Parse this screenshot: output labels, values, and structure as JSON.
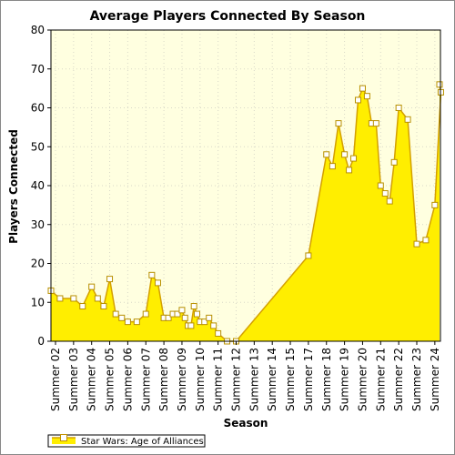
{
  "chart_data": {
    "type": "area",
    "title": "Average Players Connected By Season",
    "xlabel": "Season",
    "ylabel": "Players Connected",
    "ylim": [
      0,
      80
    ],
    "yticks": [
      0,
      10,
      20,
      30,
      40,
      50,
      60,
      70,
      80
    ],
    "xticks": [
      "Summer 02",
      "Summer 03",
      "Summer 04",
      "Summer 05",
      "Summer 06",
      "Summer 07",
      "Summer 08",
      "Summer 09",
      "Summer 10",
      "Summer 11",
      "Summer 12",
      "Summer 13",
      "Summer 14",
      "Summer 15",
      "Summer 17",
      "Summer 18",
      "Summer 19",
      "Summer 20",
      "Summer 21",
      "Summer 22",
      "Summer 23",
      "Summer 24"
    ],
    "grid": true,
    "legend_position": "bottom-left",
    "colors": {
      "fill": "#ffee00",
      "line": "#d4a000",
      "plot_bg": "#ffffe0",
      "marker_fill": "#ffffff"
    },
    "series": [
      {
        "name": "Star Wars: Age of Alliances",
        "points": [
          [
            "Summer 02",
            13
          ],
          [
            "Summer 02",
            11
          ],
          [
            "Summer 03",
            11
          ],
          [
            "Summer 03",
            9
          ],
          [
            "Summer 04",
            14
          ],
          [
            "Summer 04",
            11
          ],
          [
            "Summer 04",
            9
          ],
          [
            "Summer 05",
            16
          ],
          [
            "Summer 05",
            7
          ],
          [
            "Summer 05",
            6
          ],
          [
            "Summer 06",
            5
          ],
          [
            "Summer 06",
            5
          ],
          [
            "Summer 07",
            7
          ],
          [
            "Summer 07",
            17
          ],
          [
            "Summer 07",
            15
          ],
          [
            "Summer 08",
            6
          ],
          [
            "Summer 08",
            6
          ],
          [
            "Summer 08",
            7
          ],
          [
            "Summer 08",
            7
          ],
          [
            "Summer 09",
            8
          ],
          [
            "Summer 09",
            6
          ],
          [
            "Summer 09",
            4
          ],
          [
            "Summer 09",
            4
          ],
          [
            "Summer 09",
            9
          ],
          [
            "Summer 09",
            7
          ],
          [
            "Summer 10",
            5
          ],
          [
            "Summer 10",
            5
          ],
          [
            "Summer 10",
            6
          ],
          [
            "Summer 10",
            4
          ],
          [
            "Summer 11",
            2
          ],
          [
            "Summer 11",
            0
          ],
          [
            "Summer 12",
            0
          ],
          [
            "Summer 17",
            22
          ],
          [
            "Summer 18",
            48
          ],
          [
            "Summer 18",
            45
          ],
          [
            "Summer 18",
            56
          ],
          [
            "Summer 19",
            48
          ],
          [
            "Summer 19",
            44
          ],
          [
            "Summer 19",
            47
          ],
          [
            "Summer 19",
            62
          ],
          [
            "Summer 20",
            65
          ],
          [
            "Summer 20",
            63
          ],
          [
            "Summer 20",
            56
          ],
          [
            "Summer 20",
            56
          ],
          [
            "Summer 21",
            40
          ],
          [
            "Summer 21",
            38
          ],
          [
            "Summer 21",
            36
          ],
          [
            "Summer 21",
            46
          ],
          [
            "Summer 22",
            60
          ],
          [
            "Summer 22",
            57
          ],
          [
            "Summer 23",
            25
          ],
          [
            "Summer 23",
            26
          ],
          [
            "Summer 24",
            35
          ],
          [
            "Summer 24",
            64
          ],
          [
            "Summer 24",
            66
          ]
        ]
      }
    ]
  }
}
